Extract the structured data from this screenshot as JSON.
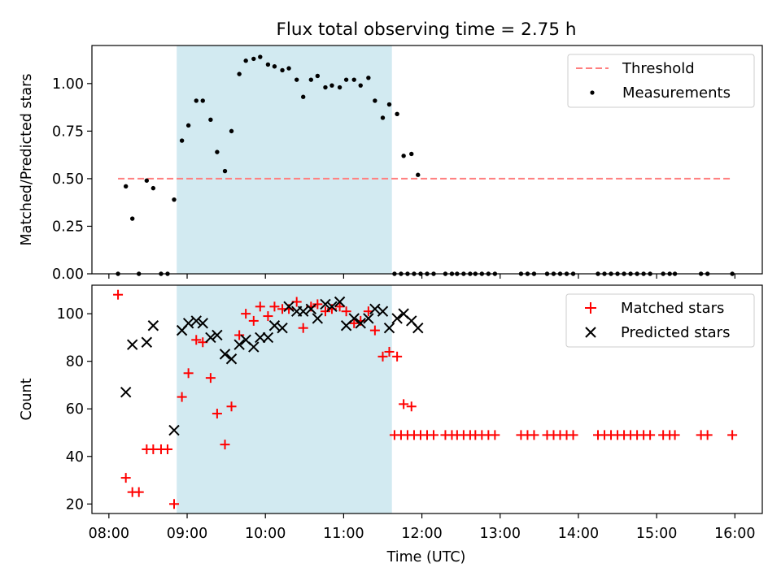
{
  "title": "Flux total observing time = 2.75 h",
  "xlabel": "Time (UTC)",
  "colors": {
    "shade": "#add8e6",
    "threshold": "#ff7f7f",
    "measurement": "#000000",
    "matched": "#ff0000",
    "predicted": "#000000"
  },
  "chart_data": [
    {
      "type": "scatter",
      "panel": "top",
      "ylabel": "Matched/Predicted stars",
      "xlim": [
        "07:47",
        "16:21"
      ],
      "ylim": [
        0,
        1.2
      ],
      "xticks": [
        "08:00",
        "09:00",
        "10:00",
        "11:00",
        "12:00",
        "13:00",
        "14:00",
        "15:00",
        "16:00"
      ],
      "yticks": [
        "0.00",
        "0.25",
        "0.50",
        "0.75",
        "1.00"
      ],
      "shaded_interval": [
        "08:52",
        "11:37"
      ],
      "threshold": {
        "name": "Threshold",
        "y": 0.5,
        "x": [
          "08:07",
          "15:58"
        ],
        "style": "dashed"
      },
      "legend": [
        "Threshold",
        "Measurements"
      ],
      "legend_position": "upper right",
      "series": [
        {
          "name": "Measurements",
          "marker": "dot",
          "points": [
            [
              "08:07",
              0
            ],
            [
              "08:13",
              0.46
            ],
            [
              "08:18",
              0.29
            ],
            [
              "08:23",
              0
            ],
            [
              "08:29",
              0.49
            ],
            [
              "08:34",
              0.45
            ],
            [
              "08:40",
              0
            ],
            [
              "08:45",
              0
            ],
            [
              "08:50",
              0.39
            ],
            [
              "08:56",
              0.7
            ],
            [
              "09:01",
              0.78
            ],
            [
              "09:07",
              0.91
            ],
            [
              "09:12",
              0.91
            ],
            [
              "09:18",
              0.81
            ],
            [
              "09:23",
              0.64
            ],
            [
              "09:29",
              0.54
            ],
            [
              "09:34",
              0.75
            ],
            [
              "09:40",
              1.05
            ],
            [
              "09:45",
              1.12
            ],
            [
              "09:51",
              1.13
            ],
            [
              "09:56",
              1.14
            ],
            [
              "10:02",
              1.1
            ],
            [
              "10:07",
              1.09
            ],
            [
              "10:13",
              1.07
            ],
            [
              "10:18",
              1.08
            ],
            [
              "10:24",
              1.02
            ],
            [
              "10:29",
              0.93
            ],
            [
              "10:35",
              1.02
            ],
            [
              "10:40",
              1.04
            ],
            [
              "10:46",
              0.98
            ],
            [
              "10:51",
              0.99
            ],
            [
              "10:57",
              0.98
            ],
            [
              "11:02",
              1.02
            ],
            [
              "11:08",
              1.02
            ],
            [
              "11:13",
              0.99
            ],
            [
              "11:19",
              1.03
            ],
            [
              "11:24",
              0.91
            ],
            [
              "11:30",
              0.82
            ],
            [
              "11:35",
              0.89
            ],
            [
              "11:41",
              0.84
            ],
            [
              "11:46",
              0.62
            ],
            [
              "11:52",
              0.63
            ],
            [
              "11:57",
              0.52
            ],
            [
              "11:39",
              0
            ],
            [
              "11:44",
              0
            ],
            [
              "11:49",
              0
            ],
            [
              "11:54",
              0
            ],
            [
              "11:59",
              0
            ],
            [
              "12:04",
              0
            ],
            [
              "12:09",
              0
            ],
            [
              "12:18",
              0
            ],
            [
              "12:23",
              0
            ],
            [
              "12:27",
              0
            ],
            [
              "12:32",
              0
            ],
            [
              "12:37",
              0
            ],
            [
              "12:41",
              0
            ],
            [
              "12:46",
              0
            ],
            [
              "12:51",
              0
            ],
            [
              "12:56",
              0
            ],
            [
              "13:16",
              0
            ],
            [
              "13:21",
              0
            ],
            [
              "13:26",
              0
            ],
            [
              "13:36",
              0
            ],
            [
              "13:41",
              0
            ],
            [
              "13:46",
              0
            ],
            [
              "13:51",
              0
            ],
            [
              "13:56",
              0
            ],
            [
              "14:15",
              0
            ],
            [
              "14:20",
              0
            ],
            [
              "14:25",
              0
            ],
            [
              "14:30",
              0
            ],
            [
              "14:35",
              0
            ],
            [
              "14:40",
              0
            ],
            [
              "14:45",
              0
            ],
            [
              "14:50",
              0
            ],
            [
              "14:55",
              0
            ],
            [
              "15:05",
              0
            ],
            [
              "15:10",
              0
            ],
            [
              "15:14",
              0
            ],
            [
              "15:34",
              0
            ],
            [
              "15:39",
              0
            ],
            [
              "15:58",
              0
            ]
          ]
        }
      ]
    },
    {
      "type": "scatter",
      "panel": "bottom",
      "ylabel": "Count",
      "xlim": [
        "07:47",
        "16:21"
      ],
      "ylim": [
        16,
        112
      ],
      "xticks": [
        "08:00",
        "09:00",
        "10:00",
        "11:00",
        "12:00",
        "13:00",
        "14:00",
        "15:00",
        "16:00"
      ],
      "yticks": [
        "20",
        "40",
        "60",
        "80",
        "100"
      ],
      "shaded_interval": [
        "08:52",
        "11:37"
      ],
      "legend": [
        "Matched stars",
        "Predicted stars"
      ],
      "legend_position": "upper right",
      "series": [
        {
          "name": "Matched stars",
          "marker": "plus",
          "points": [
            [
              "08:07",
              108
            ],
            [
              "08:13",
              31
            ],
            [
              "08:18",
              25
            ],
            [
              "08:23",
              25
            ],
            [
              "08:29",
              43
            ],
            [
              "08:34",
              43
            ],
            [
              "08:40",
              43
            ],
            [
              "08:45",
              43
            ],
            [
              "08:50",
              20
            ],
            [
              "08:56",
              65
            ],
            [
              "09:01",
              75
            ],
            [
              "09:07",
              89
            ],
            [
              "09:12",
              88
            ],
            [
              "09:18",
              73
            ],
            [
              "09:23",
              58
            ],
            [
              "09:29",
              45
            ],
            [
              "09:34",
              61
            ],
            [
              "09:40",
              91
            ],
            [
              "09:45",
              100
            ],
            [
              "09:51",
              97
            ],
            [
              "09:56",
              103
            ],
            [
              "10:02",
              99
            ],
            [
              "10:07",
              103
            ],
            [
              "10:13",
              102
            ],
            [
              "10:18",
              102
            ],
            [
              "10:24",
              105
            ],
            [
              "10:29",
              94
            ],
            [
              "10:35",
              103
            ],
            [
              "10:40",
              104
            ],
            [
              "10:46",
              101
            ],
            [
              "10:51",
              102
            ],
            [
              "10:57",
              103
            ],
            [
              "11:02",
              101
            ],
            [
              "11:08",
              96
            ],
            [
              "11:13",
              97
            ],
            [
              "11:19",
              101
            ],
            [
              "11:24",
              93
            ],
            [
              "11:30",
              82
            ],
            [
              "11:35",
              84
            ],
            [
              "11:41",
              82
            ],
            [
              "11:46",
              62
            ],
            [
              "11:52",
              61
            ],
            [
              "11:39",
              49
            ],
            [
              "11:44",
              49
            ],
            [
              "11:49",
              49
            ],
            [
              "11:54",
              49
            ],
            [
              "11:59",
              49
            ],
            [
              "12:04",
              49
            ],
            [
              "12:09",
              49
            ],
            [
              "12:18",
              49
            ],
            [
              "12:23",
              49
            ],
            [
              "12:27",
              49
            ],
            [
              "12:32",
              49
            ],
            [
              "12:37",
              49
            ],
            [
              "12:41",
              49
            ],
            [
              "12:46",
              49
            ],
            [
              "12:51",
              49
            ],
            [
              "12:56",
              49
            ],
            [
              "13:16",
              49
            ],
            [
              "13:21",
              49
            ],
            [
              "13:26",
              49
            ],
            [
              "13:36",
              49
            ],
            [
              "13:41",
              49
            ],
            [
              "13:46",
              49
            ],
            [
              "13:51",
              49
            ],
            [
              "13:56",
              49
            ],
            [
              "14:15",
              49
            ],
            [
              "14:20",
              49
            ],
            [
              "14:25",
              49
            ],
            [
              "14:30",
              49
            ],
            [
              "14:35",
              49
            ],
            [
              "14:40",
              49
            ],
            [
              "14:45",
              49
            ],
            [
              "14:50",
              49
            ],
            [
              "14:55",
              49
            ],
            [
              "15:05",
              49
            ],
            [
              "15:10",
              49
            ],
            [
              "15:14",
              49
            ],
            [
              "15:34",
              49
            ],
            [
              "15:39",
              49
            ],
            [
              "15:58",
              49
            ]
          ]
        },
        {
          "name": "Predicted stars",
          "marker": "x",
          "points": [
            [
              "08:13",
              67
            ],
            [
              "08:18",
              87
            ],
            [
              "08:29",
              88
            ],
            [
              "08:34",
              95
            ],
            [
              "08:50",
              51
            ],
            [
              "08:56",
              93
            ],
            [
              "09:01",
              96
            ],
            [
              "09:07",
              97
            ],
            [
              "09:12",
              96
            ],
            [
              "09:18",
              90
            ],
            [
              "09:23",
              91
            ],
            [
              "09:29",
              83
            ],
            [
              "09:34",
              81
            ],
            [
              "09:40",
              87
            ],
            [
              "09:45",
              89
            ],
            [
              "09:51",
              86
            ],
            [
              "09:56",
              90
            ],
            [
              "10:02",
              90
            ],
            [
              "10:07",
              95
            ],
            [
              "10:13",
              94
            ],
            [
              "10:18",
              103
            ],
            [
              "10:24",
              101
            ],
            [
              "10:29",
              101
            ],
            [
              "10:35",
              102
            ],
            [
              "10:40",
              98
            ],
            [
              "10:46",
              104
            ],
            [
              "10:51",
              103
            ],
            [
              "10:57",
              105
            ],
            [
              "11:02",
              95
            ],
            [
              "11:08",
              98
            ],
            [
              "11:13",
              96
            ],
            [
              "11:19",
              98
            ],
            [
              "11:24",
              102
            ],
            [
              "11:30",
              101
            ],
            [
              "11:35",
              94
            ],
            [
              "11:41",
              98
            ],
            [
              "11:46",
              100
            ],
            [
              "11:52",
              97
            ],
            [
              "11:57",
              94
            ]
          ]
        }
      ]
    }
  ]
}
